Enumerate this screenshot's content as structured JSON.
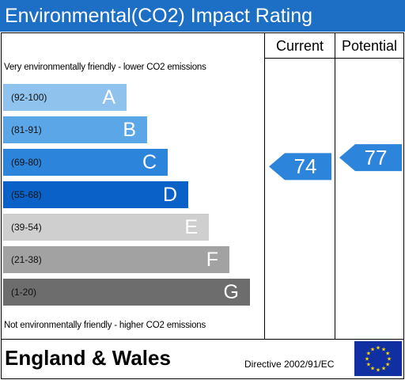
{
  "chart_data": {
    "type": "bar",
    "title": "Environmental(CO2) Impact Rating",
    "column_headers": {
      "current": "Current",
      "potential": "Potential"
    },
    "top_note": "Very environmentally friendly - lower CO2 emissions",
    "bottom_note": "Not environmentally friendly - higher CO2 emissions",
    "bands": [
      {
        "range": "(92-100)",
        "letter": "A",
        "min": 92,
        "max": 100,
        "color": "#8fc2ec"
      },
      {
        "range": "(81-91)",
        "letter": "B",
        "min": 81,
        "max": 91,
        "color": "#5aa6e6"
      },
      {
        "range": "(69-80)",
        "letter": "C",
        "min": 69,
        "max": 80,
        "color": "#2d84db"
      },
      {
        "range": "(55-68)",
        "letter": "D",
        "min": 55,
        "max": 68,
        "color": "#0a62c9"
      },
      {
        "range": "(39-54)",
        "letter": "E",
        "min": 39,
        "max": 54,
        "color": "#cfcfcf"
      },
      {
        "range": "(21-38)",
        "letter": "F",
        "min": 21,
        "max": 38,
        "color": "#a2a2a2"
      },
      {
        "range": "(1-20)",
        "letter": "G",
        "min": 1,
        "max": 20,
        "color": "#6d6d6d"
      }
    ],
    "current": {
      "value": 74,
      "label": "74"
    },
    "potential": {
      "value": 77,
      "label": "77"
    },
    "arrow_color": "#2d84db"
  },
  "footer": {
    "region": "England & Wales",
    "directive": "Directive 2002/91/EC",
    "flag_icon": "eu-flag-icon"
  },
  "colors": {
    "title_bar": "#1c6fc4",
    "flag_blue": "#0f2fa3",
    "flag_stars": "#ffd700"
  }
}
